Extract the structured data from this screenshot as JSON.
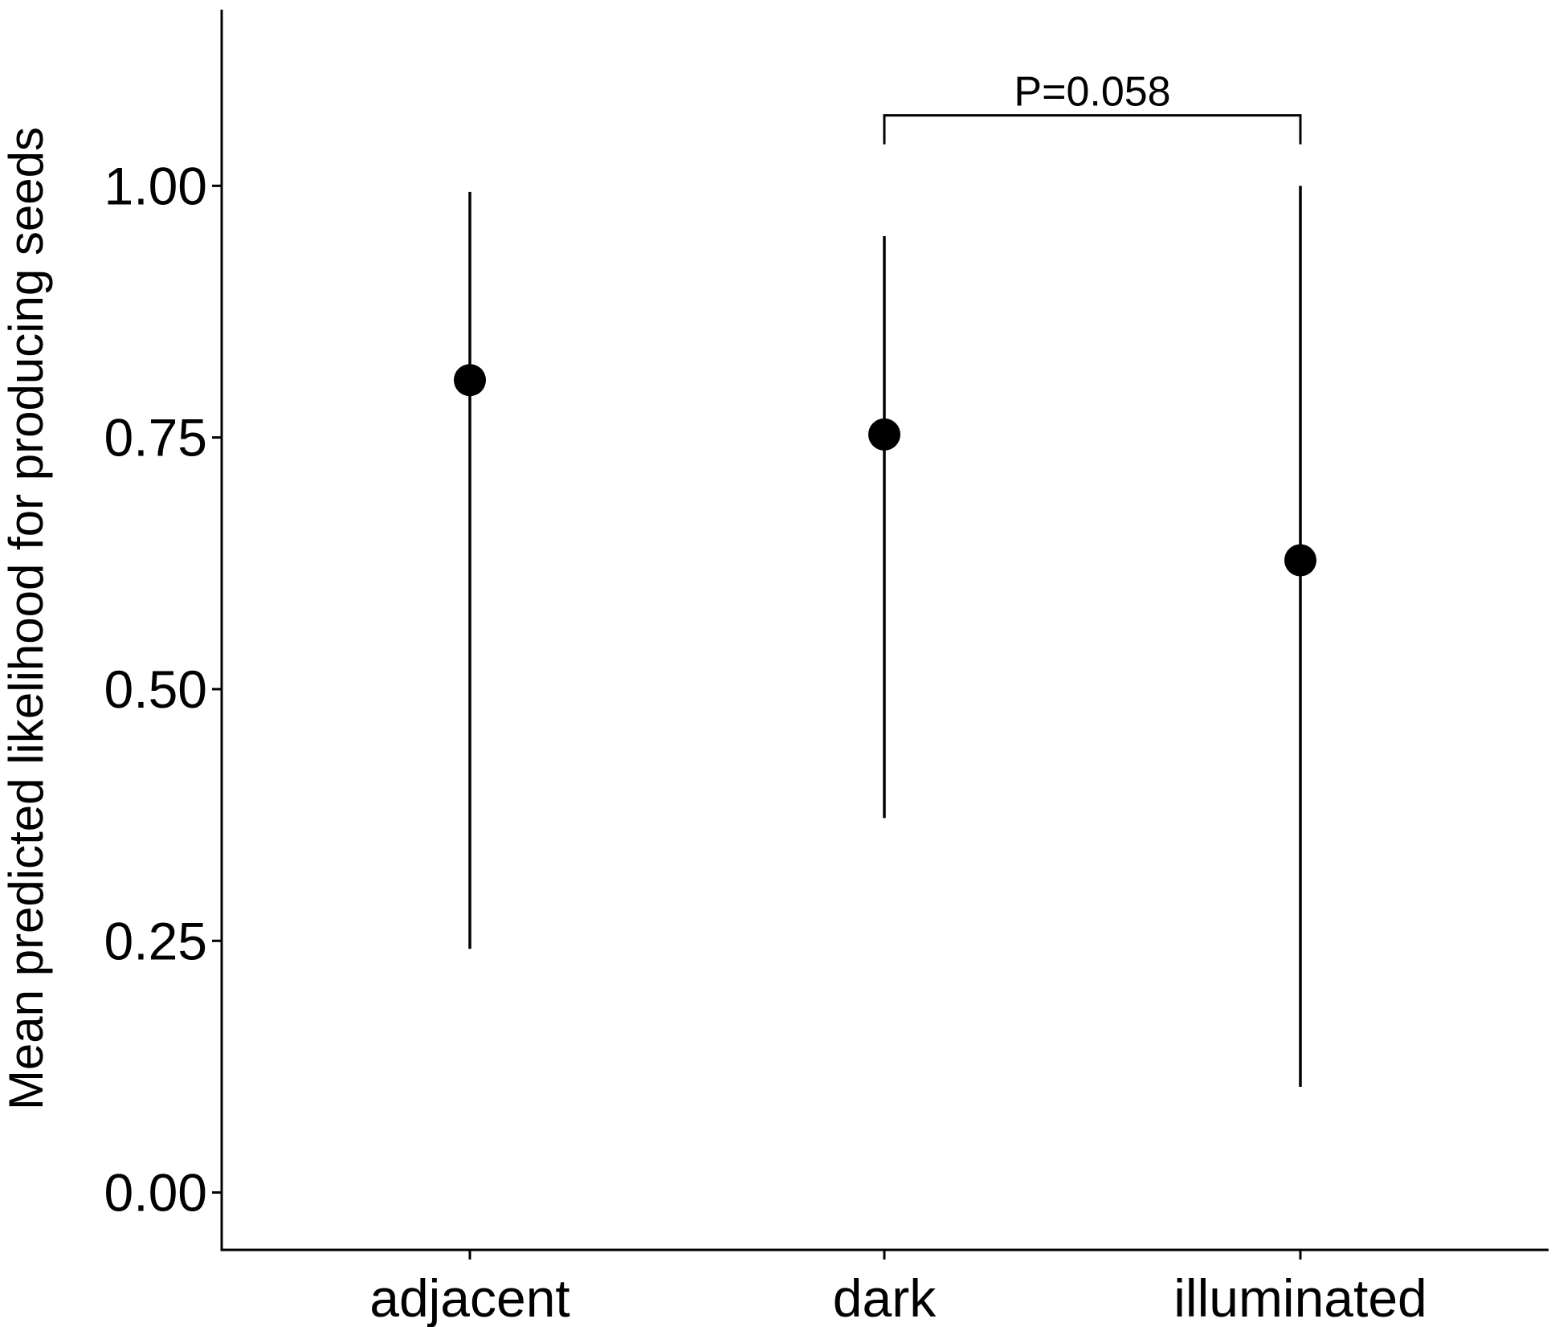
{
  "chart_data": {
    "type": "scatter",
    "subtype": "point-range",
    "title": "",
    "xlabel": "",
    "ylabel": "Mean predicted likelihood for producing seeds",
    "categories": [
      "adjacent",
      "dark",
      "illuminated"
    ],
    "points": [
      {
        "category": "adjacent",
        "mean": 0.807,
        "lower": 0.242,
        "upper": 0.994
      },
      {
        "category": "dark",
        "mean": 0.753,
        "lower": 0.372,
        "upper": 0.95
      },
      {
        "category": "illuminated",
        "mean": 0.628,
        "lower": 0.105,
        "upper": 1.0
      }
    ],
    "ylim": [
      -0.057,
      1.175
    ],
    "yticks": [
      0.0,
      0.25,
      0.5,
      0.75,
      1.0
    ],
    "ytick_labels": [
      "0.00",
      "0.25",
      "0.50",
      "0.75",
      "1.00"
    ],
    "grid": false,
    "annotations": [
      {
        "type": "bracket",
        "from": "dark",
        "to": "illuminated",
        "y": 1.07,
        "text": "P=0.058"
      }
    ],
    "colors": {
      "points": "#000000",
      "lines": "#000000",
      "axes": "#000000"
    }
  }
}
